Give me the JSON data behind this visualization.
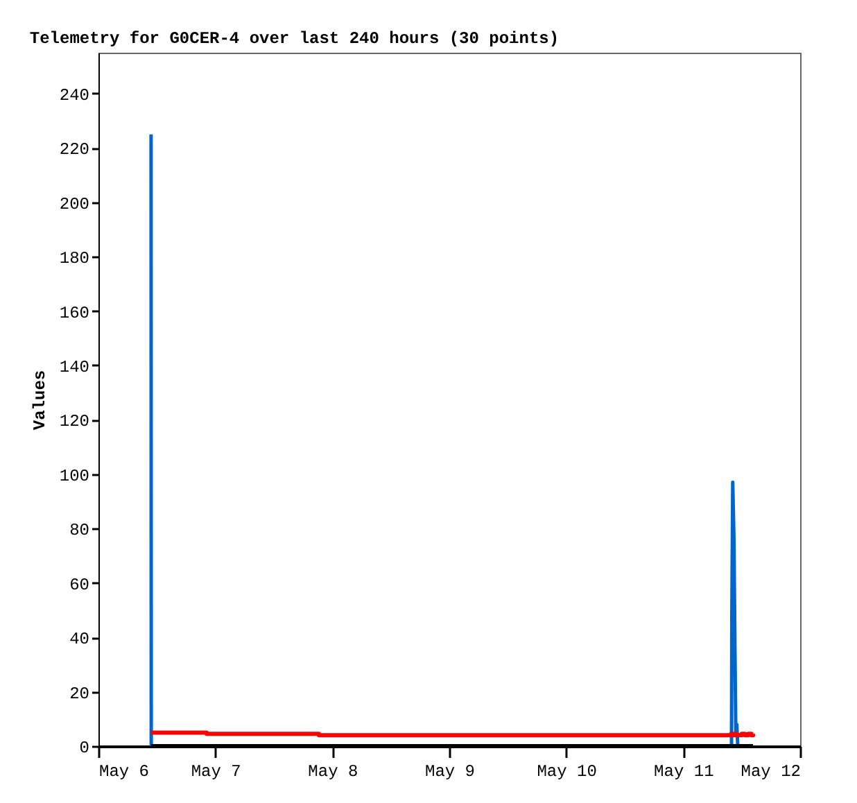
{
  "chart_data": {
    "type": "line",
    "title": "Telemetry for G0CER-4 over last 240 hours (30 points)",
    "ylabel": "Values",
    "xlim": [
      "--05-06",
      "--05-12"
    ],
    "xticks": [
      {
        "value": "--05-06",
        "label": "May 6"
      },
      {
        "value": "--05-07",
        "label": "May 7"
      },
      {
        "value": "--05-08",
        "label": "May 8"
      },
      {
        "value": "--05-09",
        "label": "May 9"
      },
      {
        "value": "--05-10",
        "label": "May 10"
      },
      {
        "value": "--05-11",
        "label": "May 11"
      },
      {
        "value": "--05-12",
        "label": "May 12"
      }
    ],
    "ylim": [
      0,
      255
    ],
    "yticks": [
      0,
      20,
      40,
      60,
      80,
      100,
      120,
      140,
      160,
      180,
      200,
      220,
      240
    ],
    "grid": false,
    "marker": "none",
    "line_style": "solid",
    "series": [
      {
        "color": "#0066cc",
        "x": [
          "--05-06T10:48",
          "--05-06T10:50",
          "--05-11T09:55",
          "--05-11T09:59",
          "--05-11T10:10",
          "--05-11T10:25",
          "--05-11T10:37",
          "--05-11T10:48",
          "--05-11T11:00",
          "--05-11T11:12",
          "--05-11T14:20"
        ],
        "values": [
          225,
          0,
          0,
          48,
          97,
          76,
          36,
          4,
          8,
          0,
          0
        ]
      },
      {
        "type": "step",
        "color": "#ff0000",
        "x": [
          "--05-06T10:48",
          "--05-06T22:12",
          "--05-07T21:14",
          "--05-11T09:30",
          "--05-11T09:50",
          "--05-11T10:10",
          "--05-11T10:40",
          "--05-11T11:00",
          "--05-11T12:00",
          "--05-11T12:40",
          "--05-11T13:20",
          "--05-11T14:00",
          "--05-11T14:20"
        ],
        "values": [
          5,
          4.5,
          4,
          4,
          4.5,
          4,
          4.5,
          4,
          4.5,
          4,
          4.5,
          4,
          4.5
        ]
      },
      {
        "color": "#000000",
        "x": [
          "--05-06T10:48",
          "--05-11T14:20"
        ],
        "values": [
          0,
          0
        ]
      }
    ]
  }
}
